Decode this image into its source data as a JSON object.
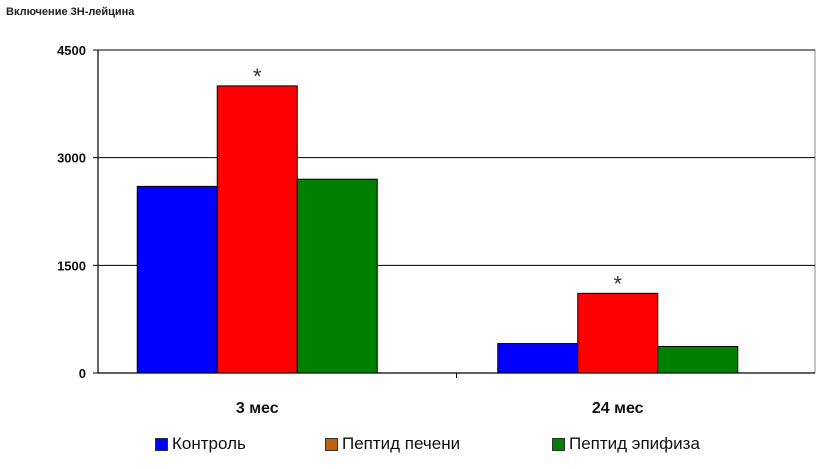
{
  "chart_data": {
    "type": "bar",
    "ylabel": "Включение 3Н-лейцина",
    "categories": [
      "3 мес",
      "24 мес"
    ],
    "series": [
      {
        "name": "Контроль",
        "color": "#0000ff",
        "values": [
          2600,
          410
        ]
      },
      {
        "name": "Пептид печени",
        "color": "#ff0000",
        "legend_color": "#c0620c",
        "values": [
          4000,
          1110
        ]
      },
      {
        "name": "Пептид эпифиза",
        "color": "#008000",
        "values": [
          2700,
          370
        ]
      }
    ],
    "ylim": [
      0,
      4500
    ],
    "yticks": [
      "0",
      "1500",
      "3000",
      "4500"
    ],
    "annotations": [
      {
        "category": "3 мес",
        "series": "Пептид печени",
        "text": "*"
      },
      {
        "category": "24 мес",
        "series": "Пептид печени",
        "text": "*"
      }
    ],
    "grid": true,
    "legend_position": "bottom"
  }
}
